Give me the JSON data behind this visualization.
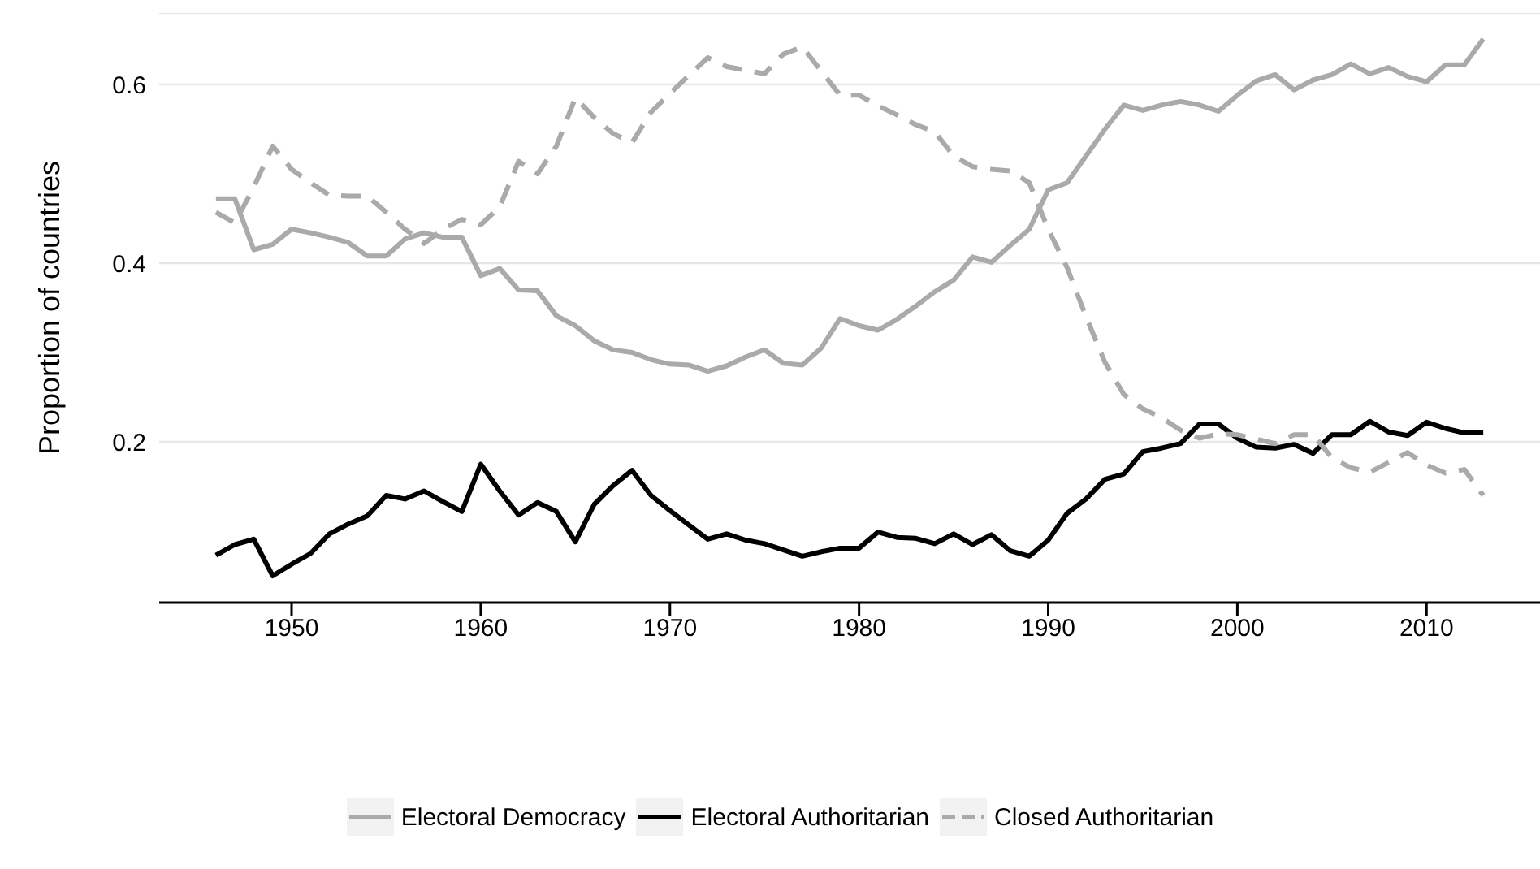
{
  "chart_data": {
    "type": "line",
    "ylabel": "Proportion of countries",
    "x": [
      1946,
      1947,
      1948,
      1949,
      1950,
      1951,
      1952,
      1953,
      1954,
      1955,
      1956,
      1957,
      1958,
      1959,
      1960,
      1961,
      1962,
      1963,
      1964,
      1965,
      1966,
      1967,
      1968,
      1969,
      1970,
      1971,
      1972,
      1973,
      1974,
      1975,
      1976,
      1977,
      1978,
      1979,
      1980,
      1981,
      1982,
      1983,
      1984,
      1985,
      1986,
      1987,
      1988,
      1989,
      1990,
      1991,
      1992,
      1993,
      1994,
      1995,
      1996,
      1997,
      1998,
      1999,
      2000,
      2001,
      2002,
      2003,
      2004,
      2005,
      2006,
      2007,
      2008,
      2009,
      2010,
      2011,
      2012,
      2013
    ],
    "series": [
      {
        "name": "Electoral Democracy",
        "color": "#aaaaaa",
        "line_style": "solid",
        "values": [
          0.472,
          0.472,
          0.415,
          0.421,
          0.438,
          0.434,
          0.429,
          0.423,
          0.408,
          0.408,
          0.427,
          0.434,
          0.429,
          0.429,
          0.386,
          0.394,
          0.37,
          0.369,
          0.341,
          0.33,
          0.313,
          0.303,
          0.3,
          0.292,
          0.287,
          0.286,
          0.279,
          0.285,
          0.295,
          0.303,
          0.288,
          0.286,
          0.305,
          0.338,
          0.33,
          0.325,
          0.337,
          0.352,
          0.368,
          0.381,
          0.407,
          0.401,
          0.42,
          0.438,
          0.482,
          0.49,
          0.52,
          0.55,
          0.577,
          0.571,
          0.577,
          0.581,
          0.577,
          0.57,
          0.588,
          0.604,
          0.611,
          0.594,
          0.605,
          0.611,
          0.623,
          0.612,
          0.619,
          0.609,
          0.603,
          0.622,
          0.622,
          0.651
        ]
      },
      {
        "name": "Electoral Authoritarian",
        "color": "#000000",
        "line_style": "solid",
        "values": [
          0.073,
          0.085,
          0.091,
          0.05,
          0.063,
          0.075,
          0.097,
          0.108,
          0.117,
          0.14,
          0.136,
          0.145,
          0.133,
          0.122,
          0.175,
          0.145,
          0.118,
          0.132,
          0.122,
          0.088,
          0.13,
          0.151,
          0.168,
          0.14,
          0.123,
          0.107,
          0.091,
          0.097,
          0.09,
          0.086,
          0.079,
          0.072,
          0.077,
          0.081,
          0.081,
          0.099,
          0.093,
          0.092,
          0.086,
          0.097,
          0.085,
          0.096,
          0.078,
          0.072,
          0.09,
          0.12,
          0.136,
          0.158,
          0.164,
          0.189,
          0.193,
          0.198,
          0.22,
          0.22,
          0.204,
          0.194,
          0.193,
          0.197,
          0.187,
          0.208,
          0.208,
          0.223,
          0.211,
          0.207,
          0.222,
          0.215,
          0.21,
          0.21
        ]
      },
      {
        "name": "Closed Authoritarian",
        "color": "#aaaaaa",
        "line_style": "dashed",
        "values": [
          0.457,
          0.445,
          0.485,
          0.531,
          0.505,
          0.49,
          0.476,
          0.475,
          0.475,
          0.457,
          0.438,
          0.422,
          0.438,
          0.449,
          0.443,
          0.463,
          0.514,
          0.5,
          0.531,
          0.585,
          0.563,
          0.545,
          0.535,
          0.569,
          0.59,
          0.61,
          0.63,
          0.62,
          0.616,
          0.612,
          0.634,
          0.642,
          0.615,
          0.588,
          0.588,
          0.576,
          0.566,
          0.555,
          0.547,
          0.52,
          0.508,
          0.505,
          0.503,
          0.49,
          0.438,
          0.395,
          0.34,
          0.289,
          0.253,
          0.237,
          0.227,
          0.213,
          0.204,
          0.209,
          0.208,
          0.203,
          0.198,
          0.208,
          0.208,
          0.182,
          0.171,
          0.166,
          0.177,
          0.188,
          0.174,
          0.165,
          0.169,
          0.14
        ]
      }
    ],
    "xlim": [
      1943,
      2016
    ],
    "xticks": [
      1950,
      1960,
      1970,
      1980,
      1990,
      2000,
      2010
    ],
    "ylim": [
      0.02,
      0.68
    ],
    "yticks": [
      0.2,
      0.4,
      0.6
    ],
    "grid": "y",
    "legend": "bottom"
  }
}
